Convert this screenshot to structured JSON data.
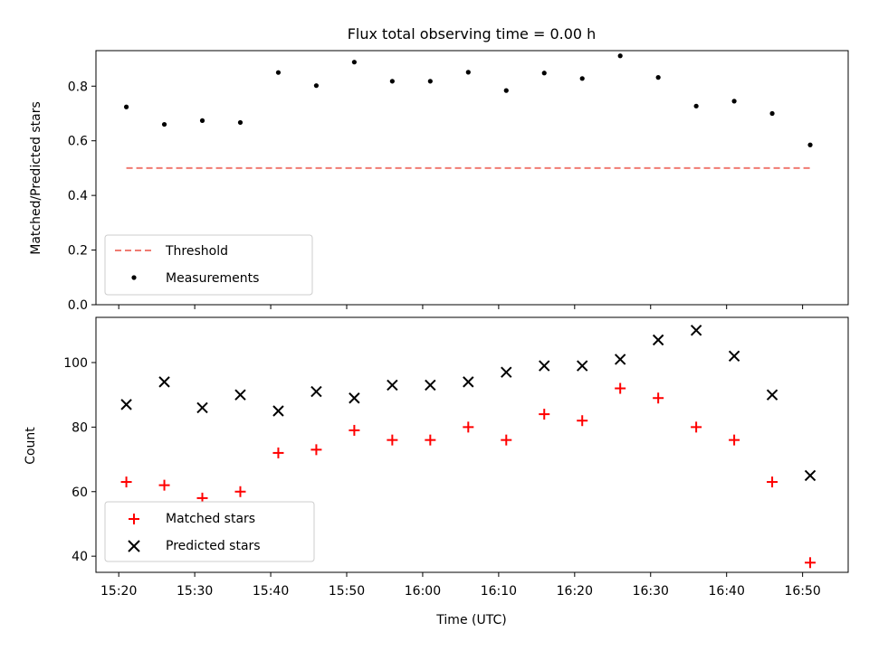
{
  "chart_data": [
    {
      "type": "scatter",
      "title": "Flux total observing time = 0.00 h",
      "xlabel": "",
      "ylabel": "Matched/Predicted stars",
      "ylim": [
        0.0,
        0.93
      ],
      "yticks": [
        "0.0",
        "0.2",
        "0.4",
        "0.6",
        "0.8"
      ],
      "grid": false,
      "legend_position": "lower left",
      "x": [
        "15:21",
        "15:26",
        "15:31",
        "15:36",
        "15:41",
        "15:46",
        "15:51",
        "15:56",
        "16:01",
        "16:06",
        "16:11",
        "16:16",
        "16:21",
        "16:26",
        "16:31",
        "16:36",
        "16:41",
        "16:46",
        "16:51"
      ],
      "series": [
        {
          "name": "Threshold",
          "style": "dashed-line",
          "color": "#f07b72",
          "x": [
            "15:21",
            "16:51"
          ],
          "values": [
            0.5,
            0.5
          ]
        },
        {
          "name": "Measurements",
          "style": "dot",
          "color": "#000000",
          "values": [
            0.724,
            0.66,
            0.674,
            0.667,
            0.85,
            0.802,
            0.888,
            0.818,
            0.818,
            0.851,
            0.784,
            0.848,
            0.828,
            0.911,
            0.832,
            0.727,
            0.745,
            0.7,
            0.585
          ]
        }
      ]
    },
    {
      "type": "scatter",
      "title": "",
      "xlabel": "Time (UTC)",
      "ylabel": "Count",
      "ylim": [
        35,
        114
      ],
      "yticks": [
        "40",
        "60",
        "80",
        "100"
      ],
      "xticks": [
        "15:20",
        "15:30",
        "15:40",
        "15:50",
        "16:00",
        "16:10",
        "16:20",
        "16:30",
        "16:40",
        "16:50"
      ],
      "xlim": [
        "15:17",
        "16:56"
      ],
      "grid": false,
      "legend_position": "lower left",
      "x": [
        "15:21",
        "15:26",
        "15:31",
        "15:36",
        "15:41",
        "15:46",
        "15:51",
        "15:56",
        "16:01",
        "16:06",
        "16:11",
        "16:16",
        "16:21",
        "16:26",
        "16:31",
        "16:36",
        "16:41",
        "16:46",
        "16:51"
      ],
      "series": [
        {
          "name": "Matched stars",
          "marker": "plus",
          "color": "#ff0000",
          "values": [
            63,
            62,
            58,
            60,
            72,
            73,
            79,
            76,
            76,
            80,
            76,
            84,
            82,
            92,
            89,
            80,
            76,
            63,
            38
          ]
        },
        {
          "name": "Predicted stars",
          "marker": "x",
          "color": "#000000",
          "values": [
            87,
            94,
            86,
            90,
            85,
            91,
            89,
            93,
            93,
            94,
            97,
            99,
            99,
            101,
            107,
            110,
            102,
            90,
            65
          ]
        }
      ]
    }
  ]
}
